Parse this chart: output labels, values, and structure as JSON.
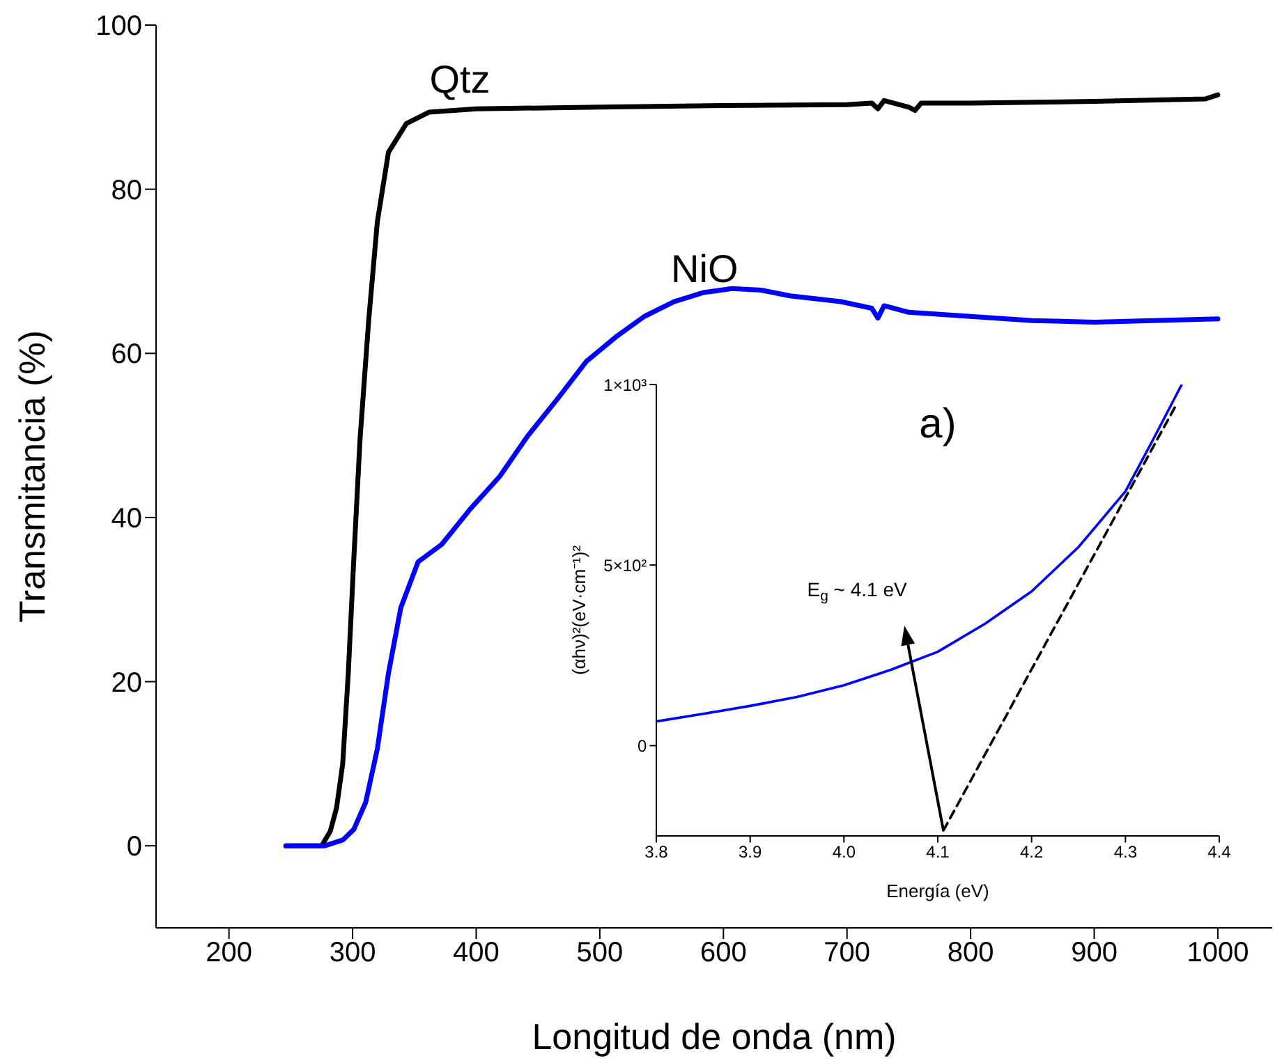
{
  "chart_data": [
    {
      "type": "line",
      "xlabel": "Longitud de onda (nm)",
      "ylabel": "Transmitancia (%)",
      "xlim": [
        141,
        1044
      ],
      "xticks": [
        200,
        300,
        400,
        500,
        600,
        700,
        800,
        900,
        1000
      ],
      "ylim": [
        -10,
        100
      ],
      "yticks": [
        0,
        20,
        40,
        60,
        80,
        100
      ],
      "series": [
        {
          "name": "Qtz",
          "color": "#000000",
          "x": [
            246,
            260,
            275,
            282,
            287,
            292,
            296.5,
            301,
            306,
            313,
            320,
            329,
            343.5,
            362,
            400,
            500,
            600,
            700,
            720,
            725,
            730,
            750,
            755,
            760,
            800,
            900,
            990,
            1000
          ],
          "values": [
            0,
            0,
            0,
            1.8,
            4.6,
            10,
            21,
            35,
            49.5,
            64,
            76,
            84.5,
            88,
            89.4,
            89.8,
            90,
            90.2,
            90.3,
            90.5,
            89.8,
            90.8,
            90,
            89.6,
            90.5,
            90.5,
            90.7,
            91,
            91.5
          ]
        },
        {
          "name": "NiO",
          "color": "#0000ff",
          "x": [
            246,
            260,
            277.6,
            292,
            301,
            310.6,
            320,
            329,
            339,
            353,
            372,
            395,
            419,
            442,
            466,
            489,
            513,
            536,
            560,
            583.5,
            607,
            630.6,
            654,
            695,
            720,
            725,
            730,
            750,
            800,
            850,
            900,
            1000
          ],
          "values": [
            0,
            0,
            0,
            0.7,
            2,
            5.3,
            11.8,
            21,
            29,
            34.6,
            36.7,
            41,
            45,
            50,
            54.5,
            59,
            62,
            64.5,
            66.3,
            67.4,
            67.9,
            67.7,
            67,
            66.3,
            65.5,
            64.3,
            65.8,
            65,
            64.5,
            64,
            63.8,
            64.2
          ]
        }
      ]
    },
    {
      "type": "line",
      "xlabel": "Energía (eV)",
      "ylabel": "(αhν)²(eV·cm⁻¹)²",
      "xlim": [
        3.8,
        4.4
      ],
      "xticks": [
        3.8,
        3.9,
        {
          "value": 4,
          "label": "4.0"
        },
        4.1,
        4.2,
        4.3,
        4.4
      ],
      "ylim": [
        -250,
        1000
      ],
      "yticks": [
        {
          "value": 0,
          "label": "0"
        },
        {
          "value": 500,
          "label": "5×10²"
        },
        {
          "value": 1000,
          "label": "1×10³"
        }
      ],
      "annotations": [
        "a)",
        "E$_{g}$ ~ 4.1 eV"
      ],
      "series": [
        {
          "color": "#0000ff",
          "x": [
            3.8,
            3.85,
            3.9,
            3.95,
            4.0,
            4.05,
            4.1,
            4.15,
            4.2,
            4.25,
            4.3,
            4.33,
            4.36
          ],
          "values": [
            67,
            88,
            110,
            135,
            167,
            210,
            260,
            337,
            427,
            550,
            704,
            850,
            1000
          ]
        },
        {
          "type": "line",
          "color": "#000000",
          "line_style": "dashed",
          "x": [
            4.106,
            4.355
          ],
          "values": [
            -235,
            948
          ]
        }
      ]
    }
  ]
}
